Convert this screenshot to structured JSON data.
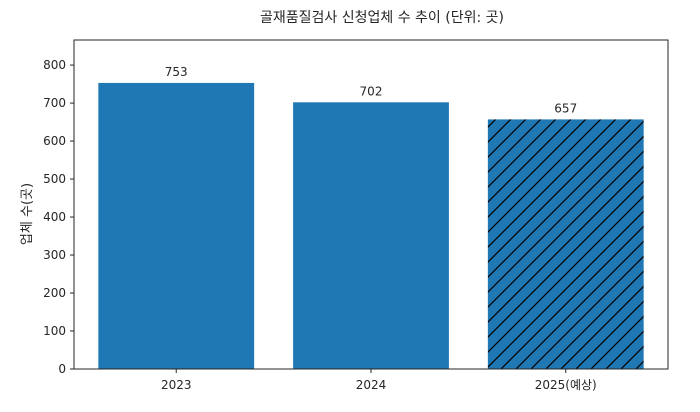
{
  "chart_data": {
    "type": "bar",
    "title": "골재품질검사 신청업체 수 추이 (단위: 곳)",
    "xlabel": "",
    "ylabel": "업체 수(곳)",
    "categories": [
      "2023",
      "2024",
      "2025(예상)"
    ],
    "values": [
      753,
      702,
      657
    ],
    "hatched": [
      false,
      false,
      true
    ],
    "ylim": [
      0,
      866
    ],
    "yticks": [
      0,
      100,
      200,
      300,
      400,
      500,
      600,
      700,
      800
    ],
    "grid": false,
    "legend": null,
    "bar_color": "#1f77b4",
    "hatch_color": "#000000"
  }
}
